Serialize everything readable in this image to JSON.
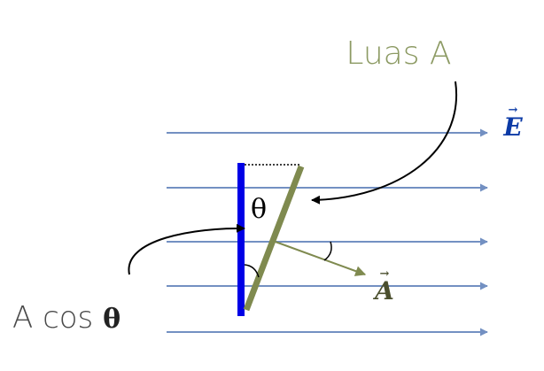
{
  "colors": {
    "field_line": "#7390c2",
    "plate_edge": "#0000e6",
    "plate_tilted": "#7f8a4f",
    "curve": "#000000",
    "e_label": "#0b3aa6",
    "a_label": "#4b4f2e",
    "surface_label": "#8c9a63",
    "projection_label": "#4a4a4a"
  },
  "labels": {
    "surface": "Luas A",
    "field_vector": "E",
    "area_vector": "A",
    "angle": "θ",
    "projection_text": "A cos ",
    "projection_theta": "θ",
    "vector_arrow": "→"
  },
  "icons": {
    "field_line": "arrow-right-icon",
    "pointer": "curved-arrow-icon"
  }
}
